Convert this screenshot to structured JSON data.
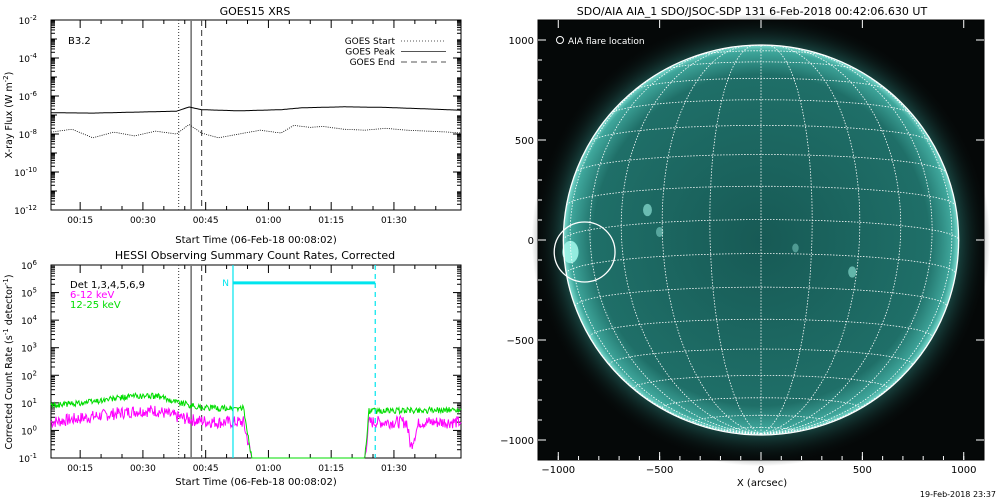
{
  "footer_timestamp": "19-Feb-2018 23:37",
  "chart_data": [
    {
      "id": "goes",
      "type": "line",
      "title": "GOES15 XRS",
      "class_label": "B3.2",
      "ylabel": "X-ray Flux (W m",
      "ylabel_sup": "-2",
      "ylabel_end": ")",
      "xlabel": "Start Time (06-Feb-18 00:08:02)",
      "x_unit": "minutes after 00:08:02",
      "xlim": [
        0,
        98
      ],
      "y_scale": "log",
      "ylim_exp": [
        -12,
        -2
      ],
      "y_ticks": [
        {
          "exp": -12,
          "label": "10",
          "sup": "-12"
        },
        {
          "exp": -10,
          "label": "10",
          "sup": "-10"
        },
        {
          "exp": -8,
          "label": "10",
          "sup": "-8"
        },
        {
          "exp": -6,
          "label": "10",
          "sup": "-6"
        },
        {
          "exp": -4,
          "label": "10",
          "sup": "-4"
        },
        {
          "exp": -2,
          "label": "10",
          "sup": "-2"
        }
      ],
      "x_ticks": [
        {
          "x": 6.97,
          "label": "00:15"
        },
        {
          "x": 21.97,
          "label": "00:30"
        },
        {
          "x": 36.97,
          "label": "00:45"
        },
        {
          "x": 51.97,
          "label": "01:00"
        },
        {
          "x": 66.97,
          "label": "01:15"
        },
        {
          "x": 81.97,
          "label": "01:30"
        }
      ],
      "legend": [
        {
          "label": "GOES Start",
          "style": "dotted"
        },
        {
          "label": "GOES Peak",
          "style": "solid"
        },
        {
          "label": "GOES End",
          "style": "dashed"
        }
      ],
      "markers": [
        {
          "x": 30.5,
          "style": "dotted"
        },
        {
          "x": 33.5,
          "style": "solid"
        },
        {
          "x": 36.0,
          "style": "dashed"
        }
      ],
      "series": [
        {
          "style": "solid",
          "points": [
            [
              0,
              -6.88
            ],
            [
              10,
              -6.9
            ],
            [
              20,
              -6.85
            ],
            [
              30,
              -6.8
            ],
            [
              33,
              -6.58
            ],
            [
              36,
              -6.72
            ],
            [
              45,
              -6.78
            ],
            [
              55,
              -6.72
            ],
            [
              60,
              -6.62
            ],
            [
              70,
              -6.57
            ],
            [
              80,
              -6.6
            ],
            [
              90,
              -6.68
            ],
            [
              98,
              -6.75
            ]
          ]
        },
        {
          "style": "dotted",
          "points": [
            [
              0,
              -7.9
            ],
            [
              5,
              -7.75
            ],
            [
              10,
              -8.2
            ],
            [
              15,
              -7.9
            ],
            [
              20,
              -8.1
            ],
            [
              25,
              -7.85
            ],
            [
              30,
              -8.0
            ],
            [
              33,
              -7.5
            ],
            [
              36,
              -7.95
            ],
            [
              40,
              -8.2
            ],
            [
              45,
              -8.0
            ],
            [
              50,
              -7.8
            ],
            [
              55,
              -7.95
            ],
            [
              58,
              -7.55
            ],
            [
              62,
              -7.65
            ],
            [
              65,
              -7.6
            ],
            [
              70,
              -7.75
            ],
            [
              75,
              -7.8
            ],
            [
              80,
              -7.7
            ],
            [
              85,
              -7.8
            ],
            [
              90,
              -7.85
            ],
            [
              95,
              -7.9
            ],
            [
              98,
              -7.95
            ]
          ]
        }
      ]
    },
    {
      "id": "hessi",
      "type": "line",
      "title": "HESSI Observing Summary Count Rates, Corrected",
      "ylabel": "Corrected Count Rate (s",
      "ylabel_sup": "-1",
      "ylabel_mid": " detector",
      "ylabel_sup2": "-1",
      "ylabel_end": ")",
      "xlabel": "Start Time (06-Feb-18 00:08:02)",
      "x_unit": "minutes after 00:08:02",
      "xlim": [
        0,
        98
      ],
      "y_scale": "log",
      "ylim_exp": [
        -1,
        6
      ],
      "y_ticks": [
        {
          "exp": -1,
          "label": "10",
          "sup": "-1"
        },
        {
          "exp": 0,
          "label": "10",
          "sup": "0"
        },
        {
          "exp": 1,
          "label": "10",
          "sup": "1"
        },
        {
          "exp": 2,
          "label": "10",
          "sup": "2"
        },
        {
          "exp": 3,
          "label": "10",
          "sup": "3"
        },
        {
          "exp": 4,
          "label": "10",
          "sup": "4"
        },
        {
          "exp": 5,
          "label": "10",
          "sup": "5"
        },
        {
          "exp": 6,
          "label": "10",
          "sup": "6"
        }
      ],
      "x_ticks": [
        {
          "x": 6.97,
          "label": "00:15"
        },
        {
          "x": 21.97,
          "label": "00:30"
        },
        {
          "x": 36.97,
          "label": "00:45"
        },
        {
          "x": 51.97,
          "label": "01:00"
        },
        {
          "x": 66.97,
          "label": "01:15"
        },
        {
          "x": 81.97,
          "label": "01:30"
        }
      ],
      "legend": [
        {
          "label": "Det 1,3,4,5,6,9",
          "color": "#000000"
        },
        {
          "label": "6-12 keV",
          "color": "#ff00ff"
        },
        {
          "label": "12-25 keV",
          "color": "#00dd00"
        }
      ],
      "markers": [
        {
          "x": 30.5,
          "style": "dotted"
        },
        {
          "x": 33.5,
          "style": "solid"
        },
        {
          "x": 36.0,
          "style": "dashed"
        }
      ],
      "night_marker": {
        "label": "N",
        "x_start": 43.5,
        "x_end": 77.5,
        "level_exp": 5.35,
        "color": "#00e5ee"
      },
      "series": [
        {
          "name": "6-12 keV",
          "color": "#ff00ff",
          "points": [
            [
              0,
              0.3
            ],
            [
              10,
              0.5
            ],
            [
              20,
              0.7
            ],
            [
              25,
              0.72
            ],
            [
              30,
              0.5
            ],
            [
              35,
              0.35
            ],
            [
              40,
              0.3
            ],
            [
              46,
              0.3
            ],
            [
              48,
              -1
            ],
            [
              75,
              -1
            ],
            [
              76,
              0.3
            ],
            [
              85,
              0.3
            ],
            [
              86,
              -0.6
            ],
            [
              88,
              0.3
            ],
            [
              98,
              0.3
            ]
          ]
        },
        {
          "name": "12-25 keV",
          "color": "#00dd00",
          "points": [
            [
              0,
              0.9
            ],
            [
              10,
              1.05
            ],
            [
              20,
              1.25
            ],
            [
              25,
              1.25
            ],
            [
              30,
              1.05
            ],
            [
              35,
              0.85
            ],
            [
              40,
              0.8
            ],
            [
              46,
              0.8
            ],
            [
              48,
              -1
            ],
            [
              75,
              -1
            ],
            [
              76,
              0.7
            ],
            [
              98,
              0.75
            ]
          ]
        }
      ]
    },
    {
      "id": "aia",
      "type": "scatter",
      "title": "SDO/AIA AIA_1 SDO/JSOC-SDP 131  6-Feb-2018 00:42:06.630 UT",
      "legend_label": "AIA flare location",
      "xlabel": "X (arcsec)",
      "xlim": [
        -1100,
        1100
      ],
      "ylim": [
        -1100,
        1100
      ],
      "x_ticks": [
        -1000,
        -500,
        0,
        500,
        1000
      ],
      "y_ticks": [
        -1000,
        -500,
        0,
        500,
        1000
      ],
      "tick_labels": {
        "-1000": "−1000",
        "-500": "−500",
        "0": "0",
        "500": "500",
        "1000": "1000"
      },
      "disk_radius": 975,
      "disk_color": "#1f6f68",
      "grid_color": "#ffffff",
      "flare": {
        "x": -870,
        "y": -60,
        "radius": 150
      }
    }
  ]
}
